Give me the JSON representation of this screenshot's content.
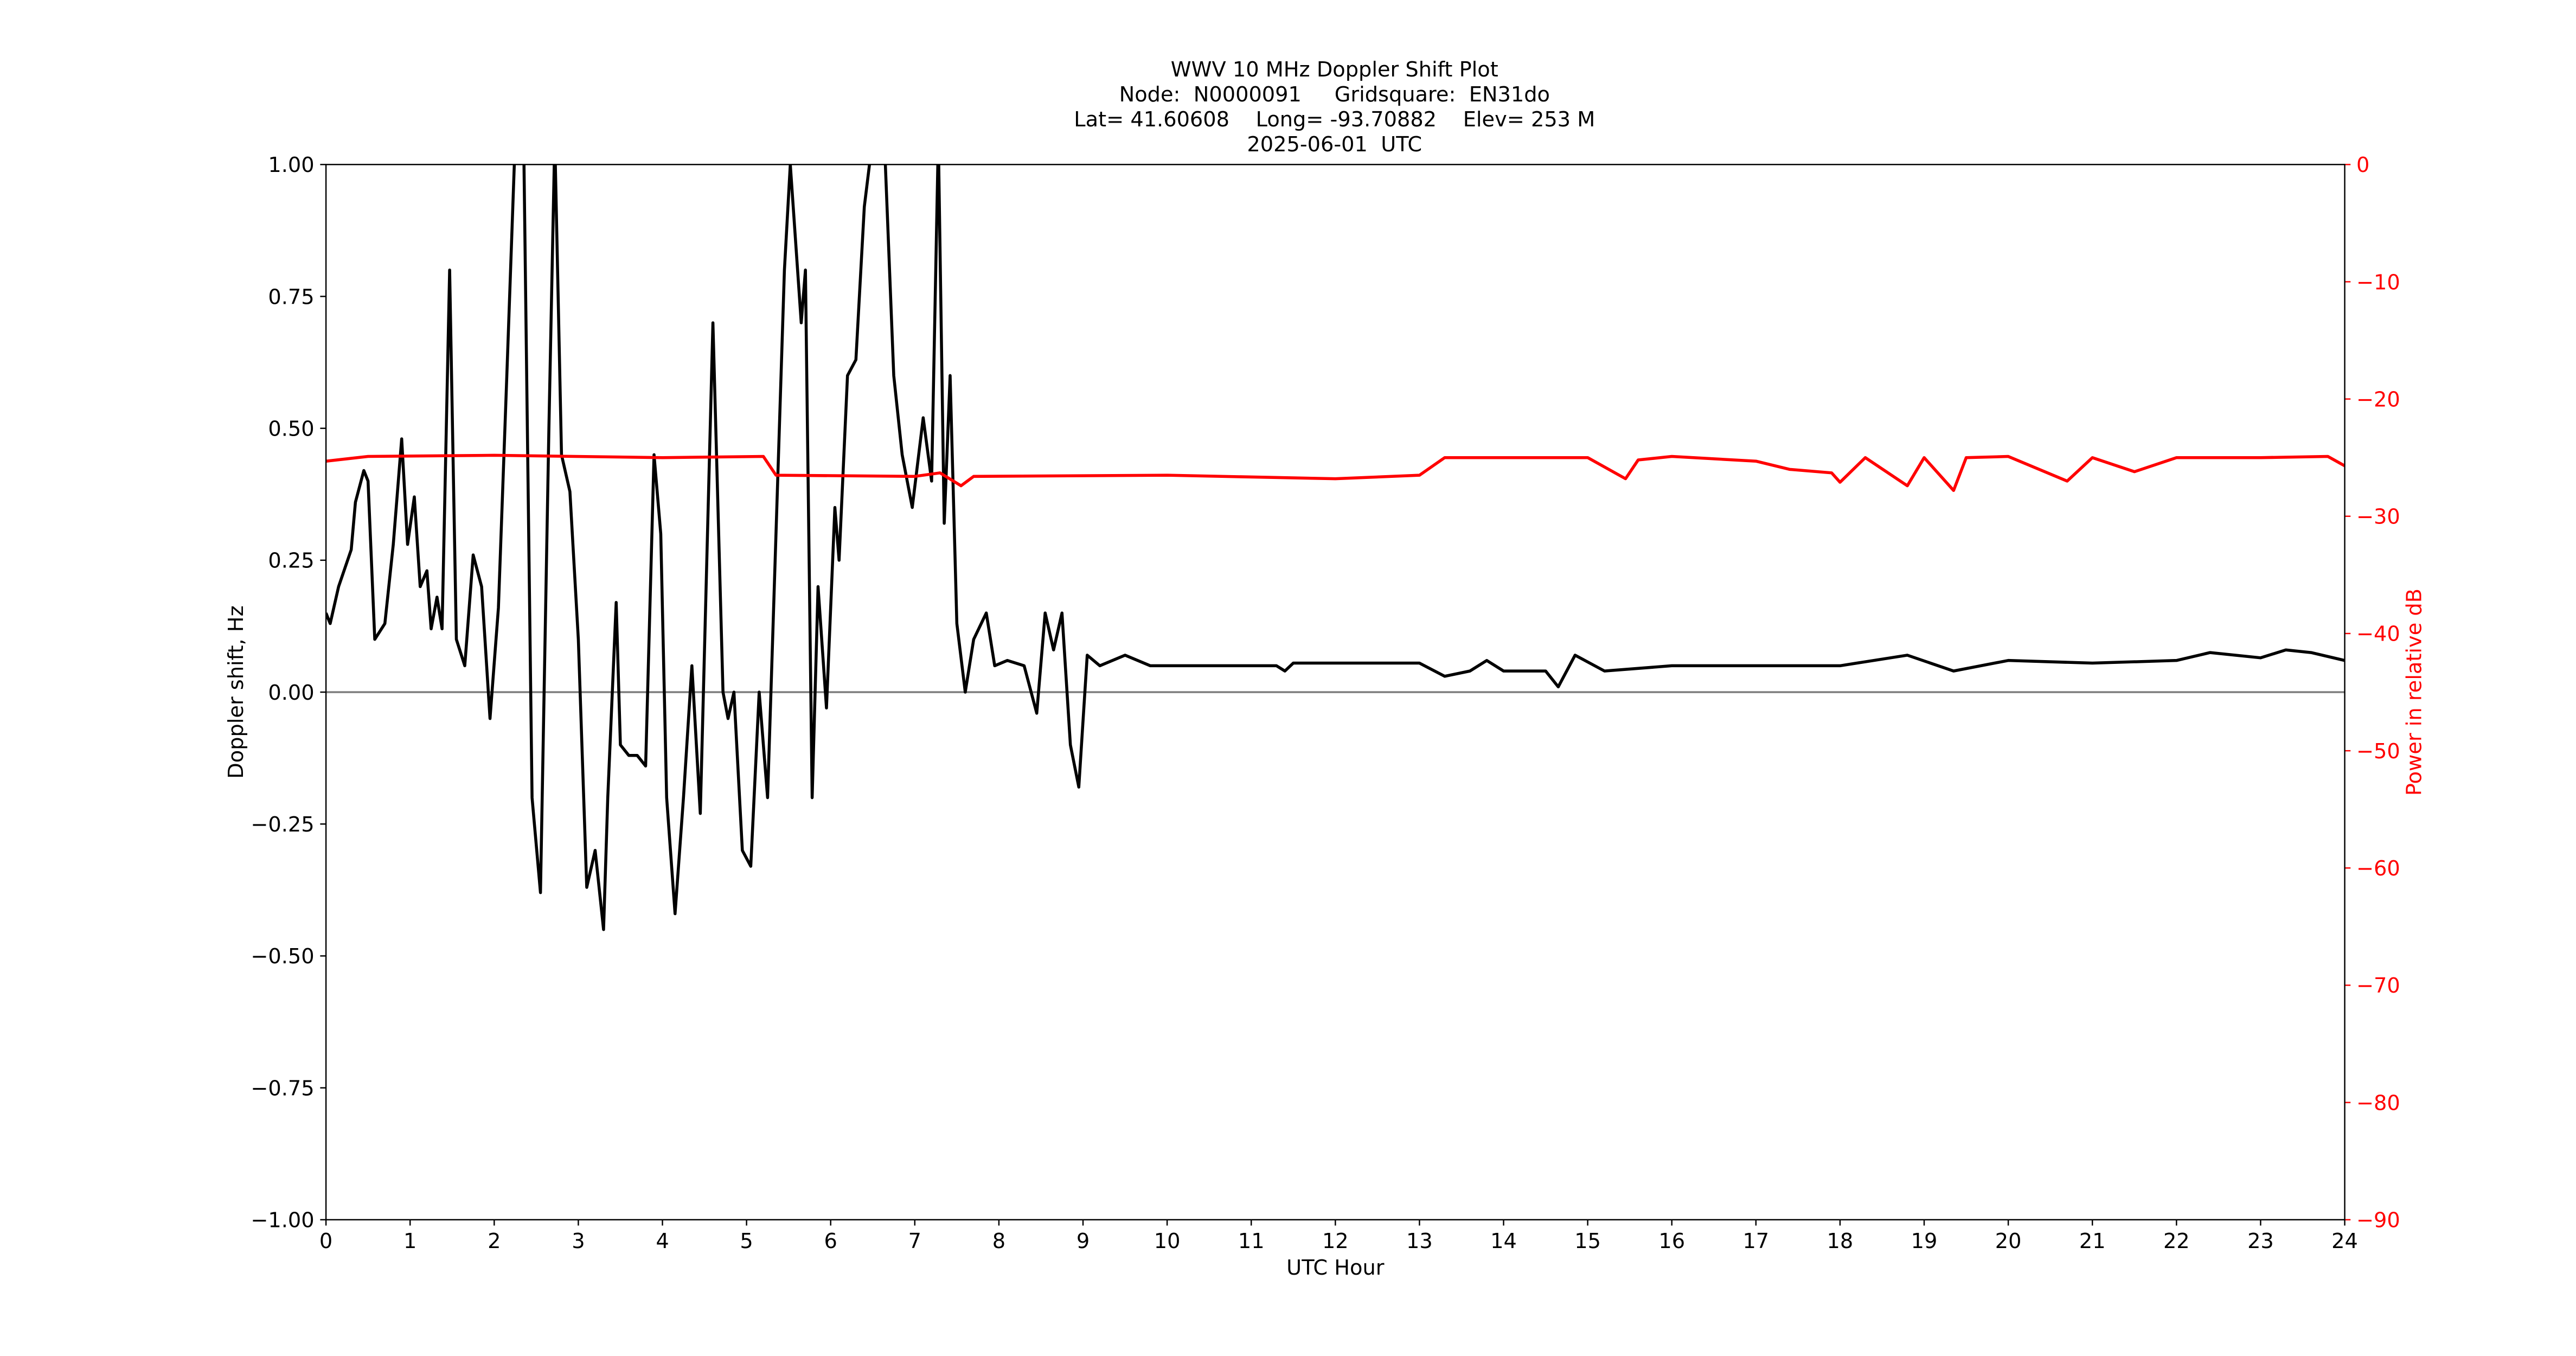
{
  "chart_data": {
    "type": "line",
    "title": [
      "WWV 10 MHz Doppler Shift Plot",
      "Node:  N0000091     Gridsquare:  EN31do",
      "Lat= 41.60608    Long= -93.70882    Elev= 253 M",
      "2025-06-01  UTC"
    ],
    "x_label": "UTC Hour",
    "y_label": "Doppler shift, Hz",
    "y2_label": "Power in relative dB",
    "xlim": [
      0,
      24
    ],
    "xticks": [
      0,
      1,
      2,
      3,
      4,
      5,
      6,
      7,
      8,
      9,
      10,
      11,
      12,
      13,
      14,
      15,
      16,
      17,
      18,
      19,
      20,
      21,
      22,
      23,
      24
    ],
    "ylim": [
      -1,
      1
    ],
    "yticks": [
      {
        "value": -1,
        "label": "−1.00"
      },
      {
        "value": -0.75,
        "label": "−0.75"
      },
      {
        "value": -0.5,
        "label": "−0.50"
      },
      {
        "value": -0.25,
        "label": "−0.25"
      },
      {
        "value": 0,
        "label": "0.00"
      },
      {
        "value": 0.25,
        "label": "0.25"
      },
      {
        "value": 0.5,
        "label": "0.50"
      },
      {
        "value": 0.75,
        "label": "0.75"
      },
      {
        "value": 1,
        "label": "1.00"
      }
    ],
    "y2lim": [
      -90,
      0
    ],
    "y2ticks": [
      {
        "value": -90,
        "label": "−90"
      },
      {
        "value": -80,
        "label": "−80"
      },
      {
        "value": -70,
        "label": "−70"
      },
      {
        "value": -60,
        "label": "−60"
      },
      {
        "value": -50,
        "label": "−50"
      },
      {
        "value": -40,
        "label": "−40"
      },
      {
        "value": -30,
        "label": "−30"
      },
      {
        "value": -20,
        "label": "−20"
      },
      {
        "value": -10,
        "label": "−10"
      },
      0
    ],
    "y2_color": "#ff0000",
    "hline": 0,
    "hline_color": "#808080",
    "series": [
      {
        "color": "#000000",
        "axis": "y",
        "x": [
          0,
          0.05,
          0.15,
          0.3,
          0.35,
          0.45,
          0.5,
          0.58,
          0.7,
          0.8,
          0.9,
          0.97,
          1.05,
          1.12,
          1.2,
          1.25,
          1.32,
          1.38,
          1.47,
          1.55,
          1.65,
          1.75,
          1.85,
          1.95,
          2.05,
          2.15,
          2.25,
          2.35,
          2.45,
          2.55,
          2.65,
          2.72,
          2.8,
          2.9,
          3.0,
          3.1,
          3.2,
          3.3,
          3.35,
          3.45,
          3.5,
          3.6,
          3.7,
          3.8,
          3.9,
          3.98,
          4.05,
          4.15,
          4.25,
          4.35,
          4.45,
          4.6,
          4.72,
          4.78,
          4.85,
          4.95,
          5.05,
          5.15,
          5.25,
          5.35,
          5.45,
          5.52,
          5.65,
          5.7,
          5.78,
          5.85,
          5.95,
          6.05,
          6.1,
          6.2,
          6.3,
          6.4,
          6.5,
          6.6,
          6.75,
          6.85,
          6.97,
          7.1,
          7.2,
          7.28,
          7.35,
          7.42,
          7.5,
          7.6,
          7.7,
          7.85,
          7.95,
          8.1,
          8.3,
          8.45,
          8.55,
          8.65,
          8.75,
          8.85,
          8.95,
          9.05,
          9.2,
          9.5,
          9.8,
          11.3,
          11.4,
          11.5,
          13.0,
          13.3,
          13.6,
          13.8,
          14.0,
          14.5,
          14.65,
          14.85,
          15.2,
          16.0,
          17.0,
          18.0,
          18.8,
          19.35,
          20.0,
          21.0,
          22.0,
          22.4,
          23.0,
          23.3,
          23.6,
          24.0
        ],
        "values": [
          0.15,
          0.13,
          0.2,
          0.27,
          0.36,
          0.42,
          0.4,
          0.1,
          0.13,
          0.28,
          0.48,
          0.28,
          0.37,
          0.2,
          0.23,
          0.12,
          0.18,
          0.12,
          0.8,
          0.1,
          0.05,
          0.26,
          0.2,
          -0.05,
          0.16,
          0.6,
          1.05,
          1.05,
          -0.2,
          -0.38,
          0.5,
          1.05,
          0.45,
          0.38,
          0.1,
          -0.37,
          -0.3,
          -0.45,
          -0.2,
          0.17,
          -0.1,
          -0.12,
          -0.12,
          -0.14,
          0.45,
          0.3,
          -0.2,
          -0.42,
          -0.2,
          0.05,
          -0.23,
          0.7,
          0.0,
          -0.05,
          0.0,
          -0.3,
          -0.33,
          0.0,
          -0.2,
          0.3,
          0.8,
          1.0,
          0.7,
          0.8,
          -0.2,
          0.2,
          -0.03,
          0.35,
          0.25,
          0.6,
          0.63,
          0.92,
          1.05,
          1.2,
          0.6,
          0.45,
          0.35,
          0.52,
          0.4,
          1.05,
          0.32,
          0.6,
          0.13,
          0.0,
          0.1,
          0.15,
          0.05,
          0.06,
          0.05,
          -0.04,
          0.15,
          0.08,
          0.15,
          -0.1,
          -0.18,
          0.07,
          0.05,
          0.07,
          0.05,
          0.05,
          0.04,
          0.055,
          0.055,
          0.03,
          0.04,
          0.06,
          0.04,
          0.04,
          0.01,
          0.07,
          0.04,
          0.05,
          0.05,
          0.05,
          0.07,
          0.04,
          0.06,
          0.055,
          0.06,
          0.075,
          0.065,
          0.08,
          0.075,
          0.06
        ]
      },
      {
        "color": "#ff0000",
        "axis": "y2",
        "x": [
          0,
          0.5,
          2,
          4,
          5.2,
          5.35,
          7.0,
          7.3,
          7.55,
          7.7,
          10,
          12,
          13,
          13.3,
          15,
          15.45,
          15.6,
          16,
          17,
          17.4,
          17.9,
          18,
          18.3,
          18.8,
          19,
          19.35,
          19.5,
          20,
          20.7,
          21,
          21.5,
          22,
          23,
          23.8,
          24
        ],
        "values": [
          -25.3,
          -24.9,
          -24.8,
          -25,
          -24.9,
          -26.5,
          -26.6,
          -26.3,
          -27.4,
          -26.6,
          -26.5,
          -26.8,
          -26.5,
          -25.0,
          -25,
          -26.8,
          -25.2,
          -24.9,
          -25.3,
          -26,
          -26.3,
          -27.1,
          -25,
          -27.4,
          -25,
          -27.8,
          -25,
          -24.9,
          -27,
          -25,
          -26.2,
          -25,
          -25,
          -24.9,
          -25.7
        ]
      }
    ]
  }
}
